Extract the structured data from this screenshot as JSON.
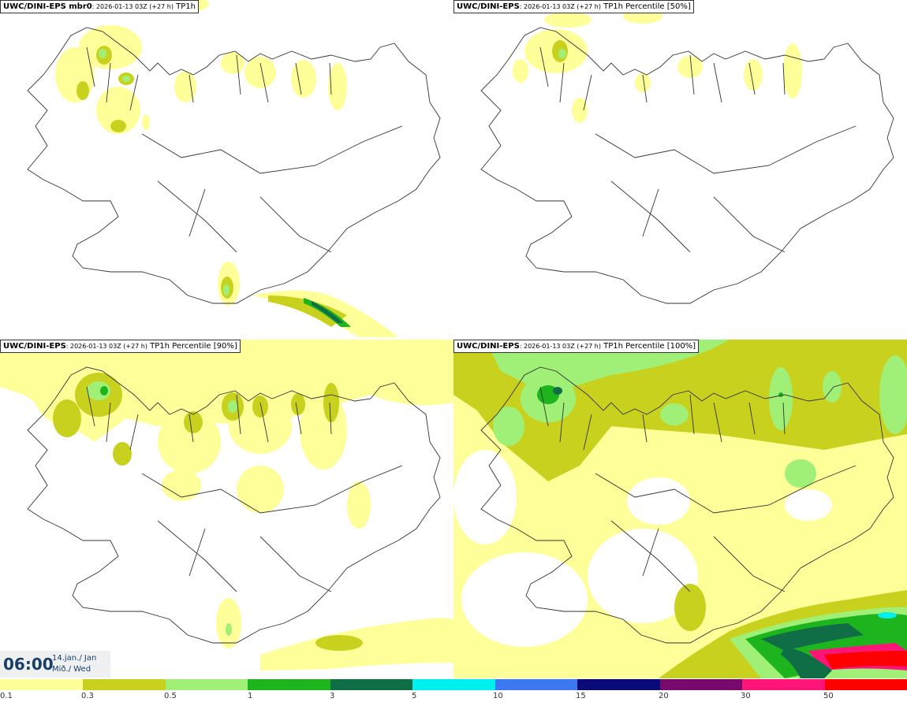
{
  "panels": [
    {
      "model": "UWC/DINI-EPS mbr0",
      "run": ": 2026-01-13 03Z (+27 h)",
      "field": " TP1h"
    },
    {
      "model": "UWC/DINI-EPS",
      "run": ": 2026-01-13 03Z (+27 h)",
      "field": " TP1h Percentile [50%]"
    },
    {
      "model": "UWC/DINI-EPS",
      "run": ": 2026-01-13 03Z (+27 h)",
      "field": " TP1h Percentile [90%]"
    },
    {
      "model": "UWC/DINI-EPS",
      "run": ": 2026-01-13 03Z (+27 h)",
      "field": " TP1h Percentile [100%]"
    }
  ],
  "valid_time": {
    "time": "06:00",
    "date": "14.jan./ Jan",
    "day": "Mið./ Wed"
  },
  "legend": {
    "ticks": [
      "0.1",
      "0.3",
      "0.5",
      "1",
      "3",
      "5",
      "10",
      "15",
      "20",
      "30",
      "50"
    ],
    "colors": [
      "#ffff99",
      "#c8d21e",
      "#a0f078",
      "#1eb41e",
      "#0f6e46",
      "#00f0f0",
      "#3c78f0",
      "#0a0a78",
      "#780a6e",
      "#ff1478",
      "#ff0000"
    ]
  },
  "colors": {
    "level1": "#ffff99",
    "level2": "#c8d21e",
    "level3": "#a0f078",
    "level4": "#1eb41e",
    "coast": "#333333",
    "label": "#1a3f66"
  }
}
